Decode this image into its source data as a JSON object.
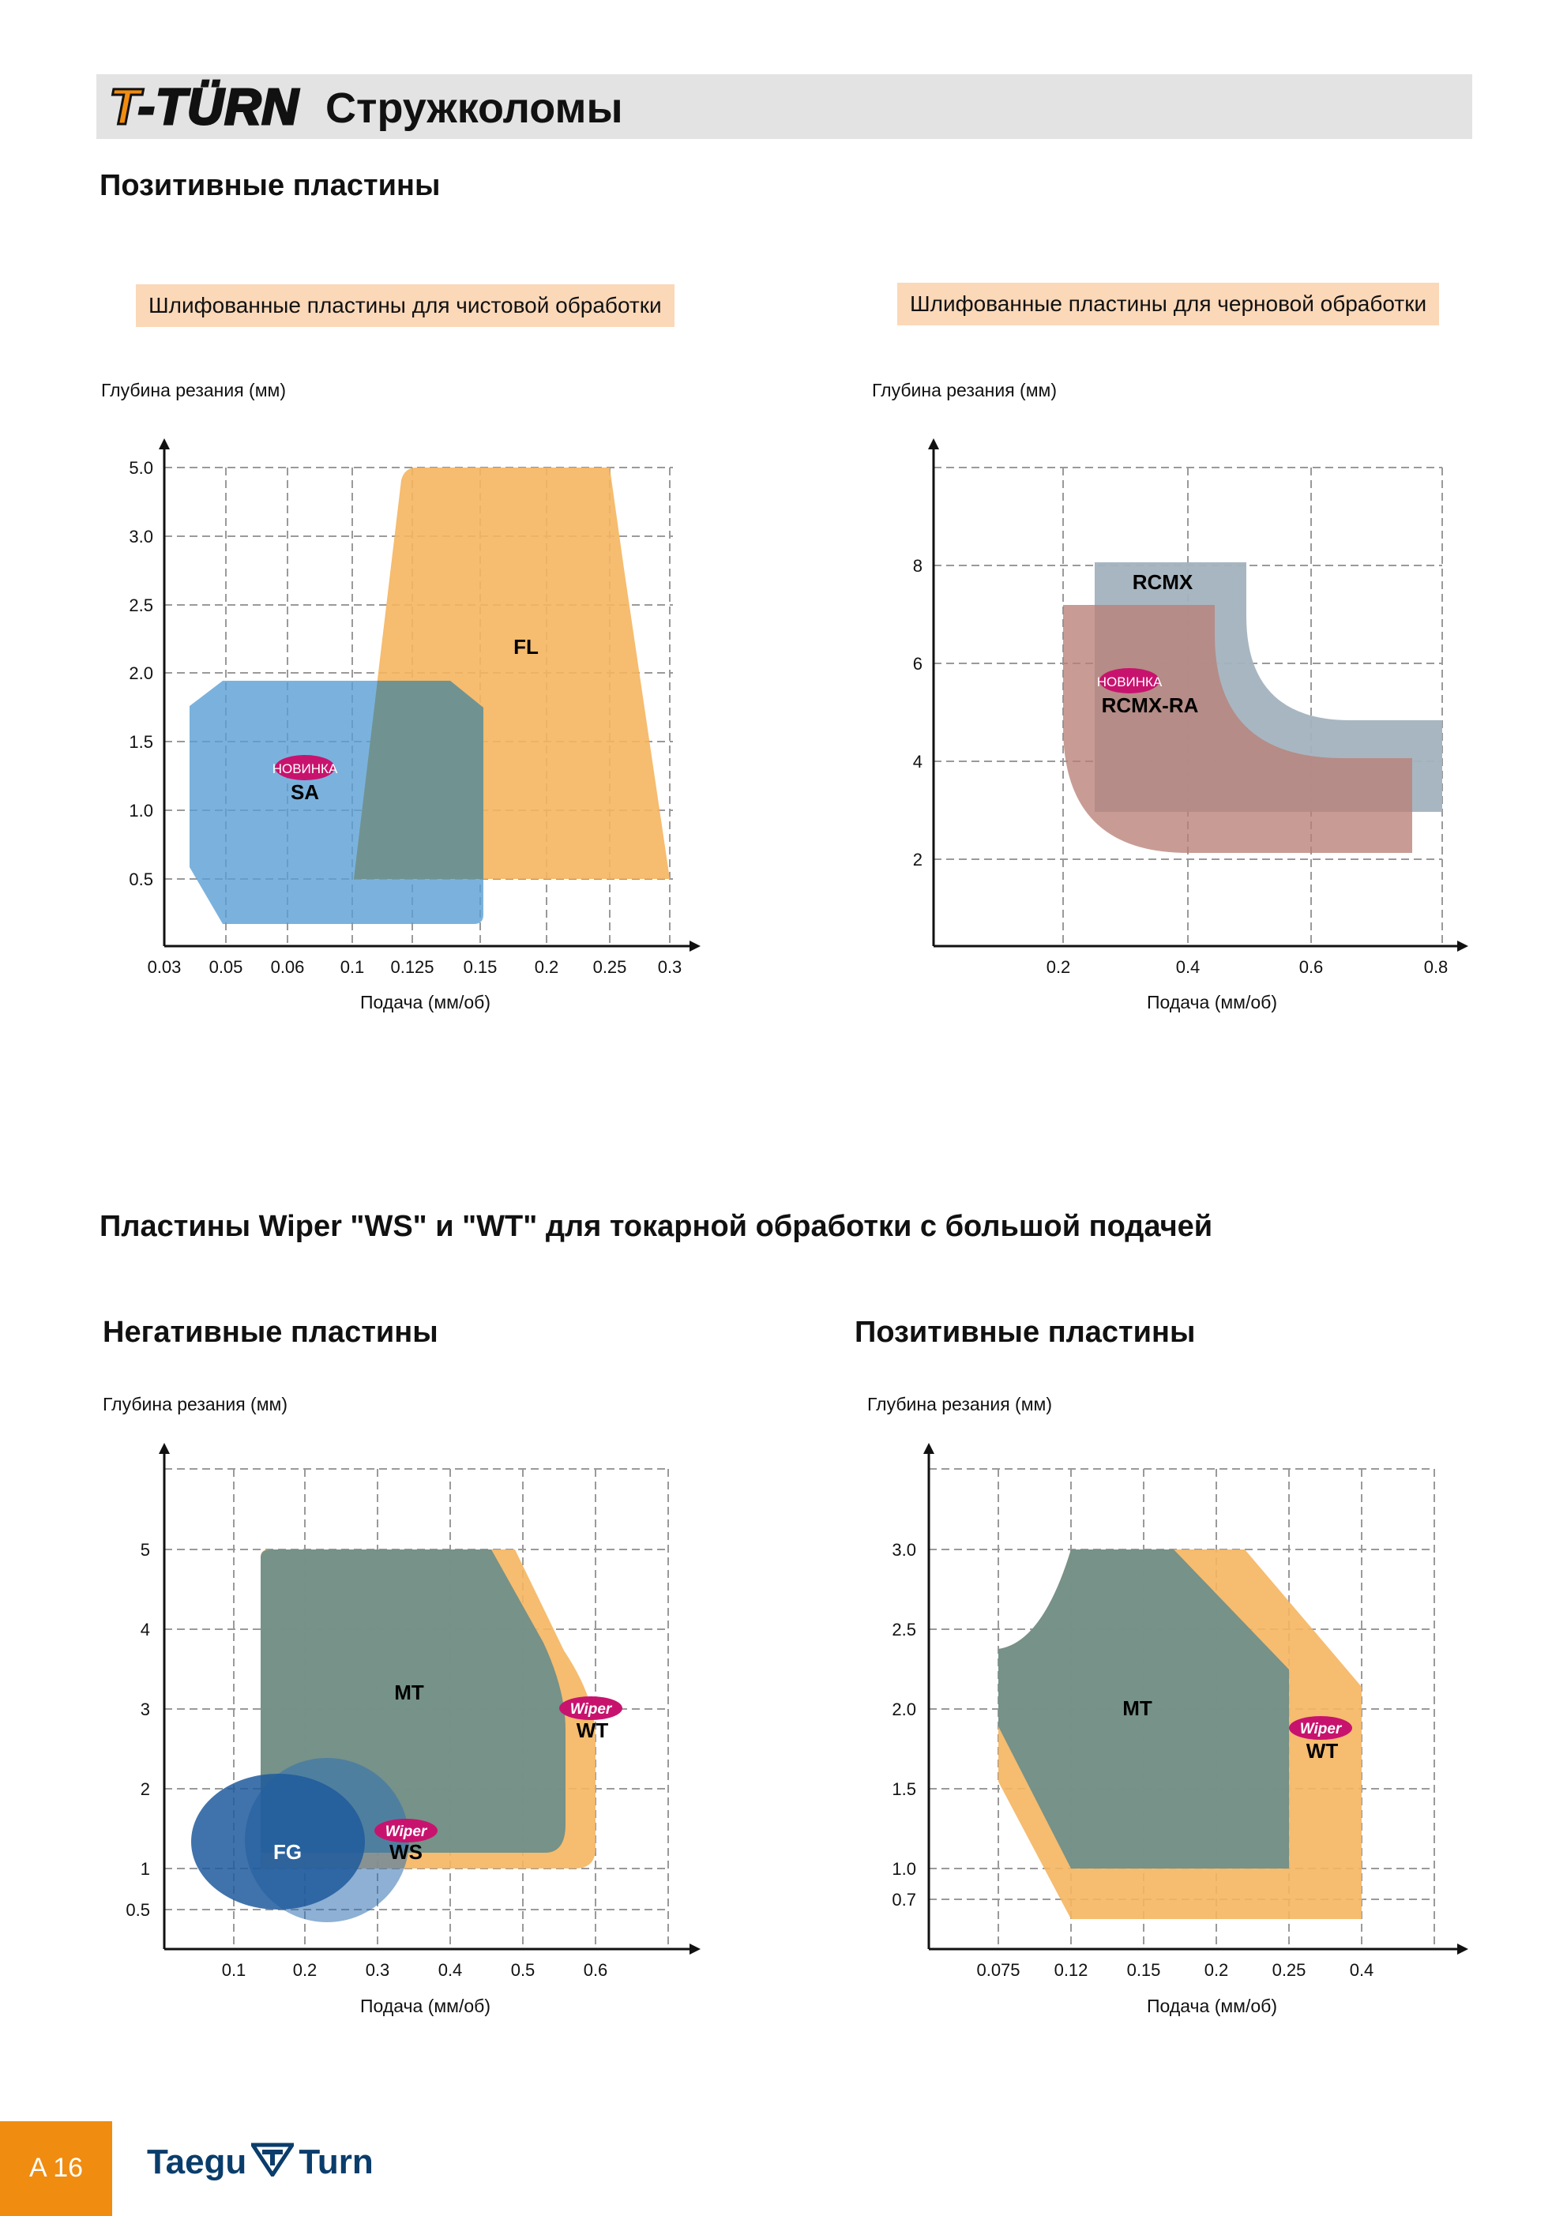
{
  "header": {
    "logo_text": "T-TÜRN",
    "title": "Стружколомы"
  },
  "section1": {
    "title": "Позитивные пластины",
    "left_tag": "Шлифованные пластины для чистовой обработки",
    "right_tag": "Шлифованные пластины для черновой обработки"
  },
  "section2": {
    "title": "Пластины Wiper \"WS\" и \"WT\" для токарной обработки с большой подачей",
    "left_subtitle": "Негативные пластины",
    "right_subtitle": "Позитивные пластины"
  },
  "badges": {
    "new": "НОВИНКА",
    "wiper": "Wiper"
  },
  "colors": {
    "orange": "#f08c10",
    "light_orange_fill": "#f5b55f",
    "blue_fill": "#5a9fd4",
    "dark_teal": "#6f8f8a",
    "grey_blue": "#a3b2be",
    "brown_fill": "#b88077",
    "deep_blue": "#1f5a9c",
    "magenta": "#c8136e",
    "tag_bg": "#fbd8b8"
  },
  "footer": {
    "page_number": "A 16",
    "brand": "Taegu Turn"
  },
  "chart_data": [
    {
      "type": "area",
      "ylabel": "Глубина резания (мм)",
      "xlabel": "Подача (мм/об)",
      "x_ticks": [
        "0.03",
        "0.05",
        "0.06",
        "0.1",
        "0.125",
        "0.15",
        "0.2",
        "0.25",
        "0.3"
      ],
      "y_ticks": [
        "0.5",
        "1.0",
        "1.5",
        "2.0",
        "2.5",
        "3.0",
        "5.0"
      ],
      "grid": true,
      "series": [
        {
          "name": "FL",
          "color": "#f5b55f",
          "polygon": [
            [
              "0.125",
              "5.0"
            ],
            [
              "0.25",
              "5.0"
            ],
            [
              "0.3",
              "0.5"
            ],
            [
              "0.1",
              "0.5"
            ]
          ]
        },
        {
          "name": "SA",
          "color": "#5a9fd4",
          "new": true,
          "polygon": [
            [
              "0.05",
              "2.0"
            ],
            [
              "0.15",
              "2.0"
            ],
            [
              "0.15",
              "0.25"
            ],
            [
              "0.05",
              "0.25"
            ]
          ]
        }
      ]
    },
    {
      "type": "area",
      "ylabel": "Глубина резания (мм)",
      "xlabel": "Подача (мм/об)",
      "x_ticks": [
        "0.2",
        "0.4",
        "0.6",
        "0.8"
      ],
      "y_ticks": [
        "2",
        "4",
        "6",
        "8"
      ],
      "grid": true,
      "series": [
        {
          "name": "RCMX",
          "color": "#a3b2be",
          "polygon": [
            [
              0.25,
              8
            ],
            [
              0.5,
              8
            ],
            [
              0.8,
              4.7
            ],
            [
              0.8,
              2.9
            ],
            [
              0.25,
              2.9
            ]
          ]
        },
        {
          "name": "RCMX-RA",
          "color": "#b88077",
          "new": true,
          "polygon": [
            [
              0.2,
              7.1
            ],
            [
              0.45,
              7.1
            ],
            [
              0.75,
              3.9
            ],
            [
              0.75,
              2.0
            ],
            [
              0.2,
              2.0
            ]
          ]
        }
      ]
    },
    {
      "type": "area",
      "ylabel": "Глубина резания (мм)",
      "xlabel": "Подача (мм/об)",
      "x_ticks": [
        "0.1",
        "0.2",
        "0.3",
        "0.4",
        "0.5",
        "0.6"
      ],
      "y_ticks": [
        "0.5",
        "1",
        "2",
        "3",
        "4",
        "5"
      ],
      "grid": true,
      "series": [
        {
          "name": "WT",
          "color": "#f5b55f",
          "wiper": true,
          "polygon": [
            [
              0.13,
              5
            ],
            [
              0.5,
              5
            ],
            [
              0.6,
              3
            ],
            [
              0.6,
              1
            ],
            [
              0.13,
              1
            ]
          ]
        },
        {
          "name": "MT",
          "color": "#6f8f8a",
          "polygon": [
            [
              0.13,
              5
            ],
            [
              0.46,
              5
            ],
            [
              0.56,
              3
            ],
            [
              0.56,
              1.2
            ],
            [
              0.13,
              1.2
            ]
          ]
        },
        {
          "name": "WS",
          "color": "#2f6fb0",
          "wiper": true,
          "ellipse": {
            "cx": 0.23,
            "cy": 1.6,
            "rx": 0.11,
            "ry": 0.9
          }
        },
        {
          "name": "FG",
          "color": "#1f5a9c",
          "ellipse": {
            "cx": 0.17,
            "cy": 1.5,
            "rx": 0.13,
            "ry": 0.9
          }
        }
      ]
    },
    {
      "type": "area",
      "ylabel": "Глубина резания (мм)",
      "xlabel": "Подача (мм/об)",
      "x_ticks": [
        "0.075",
        "0.12",
        "0.15",
        "0.2",
        "0.25",
        "0.4"
      ],
      "y_ticks": [
        "0.7",
        "1.0",
        "1.5",
        "2.0",
        "2.5",
        "3.0"
      ],
      "grid": true,
      "series": [
        {
          "name": "WT",
          "color": "#f5b55f",
          "wiper": true,
          "polygon": [
            [
              "0.12",
              "3.0"
            ],
            [
              "0.2",
              "3.0"
            ],
            [
              "0.4",
              "2.25"
            ],
            [
              "0.4",
              "0.7"
            ],
            [
              "0.12",
              "0.7"
            ],
            [
              "0.075",
              "1.9"
            ],
            [
              "0.075",
              "2.5"
            ]
          ]
        },
        {
          "name": "MT",
          "color": "#6f8f8a",
          "polygon": [
            [
              "0.12",
              "3.0"
            ],
            [
              "0.15",
              "3.0"
            ],
            [
              "0.25",
              "2.3"
            ],
            [
              "0.25",
              "1.0"
            ],
            [
              "0.12",
              "1.0"
            ],
            [
              "0.075",
              "1.9"
            ],
            [
              "0.075",
              "2.5"
            ]
          ]
        }
      ]
    }
  ]
}
